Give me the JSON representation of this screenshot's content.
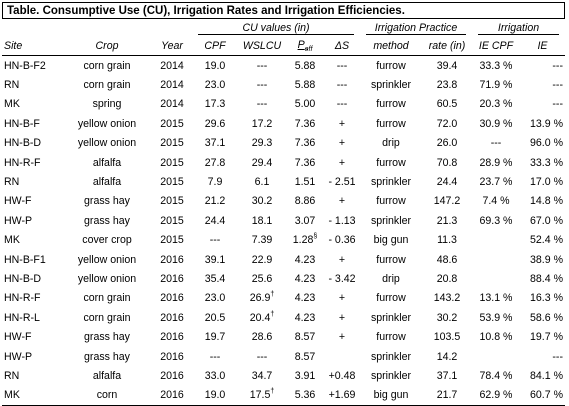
{
  "title": "Table. Consumptive Use (CU), Irrigation Rates and Irrigation Efficiencies.",
  "groups": {
    "cu": "CU values (in)",
    "practice": "Irrigation Practice",
    "irrigation": "Irrigation"
  },
  "columns": {
    "site": "Site",
    "crop": "Crop",
    "year": "Year",
    "cpf": "CPF",
    "wslcu": "WSLCU",
    "peff": "P",
    "peff_sub": "eff",
    "delta_s": "ΔS",
    "method": "method",
    "rate": "rate (in)",
    "ie_cpf": "IE CPF",
    "ie": "IE"
  },
  "rows": [
    {
      "site": "HN-B-F2",
      "crop": "corn grain",
      "year": "2014",
      "cpf": "19.0",
      "wslcu": "---",
      "wslcu_sup": "",
      "peff": "5.88",
      "peff_sup": "",
      "ds": "---",
      "method": "furrow",
      "rate": "39.4",
      "ie_cpf": "33.3 %",
      "ie": "---"
    },
    {
      "site": "RN",
      "crop": "corn grain",
      "year": "2014",
      "cpf": "23.0",
      "wslcu": "---",
      "wslcu_sup": "",
      "peff": "5.88",
      "peff_sup": "",
      "ds": "---",
      "method": "sprinkler",
      "rate": "23.8",
      "ie_cpf": "71.9 %",
      "ie": "---"
    },
    {
      "site": "MK",
      "crop": "spring",
      "year": "2014",
      "cpf": "17.3",
      "wslcu": "---",
      "wslcu_sup": "",
      "peff": "5.00",
      "peff_sup": "",
      "ds": "---",
      "method": "furrow",
      "rate": "60.5",
      "ie_cpf": "20.3 %",
      "ie": "---"
    },
    {
      "site": "HN-B-F",
      "crop": "yellow onion",
      "year": "2015",
      "cpf": "29.6",
      "wslcu": "17.2",
      "wslcu_sup": "",
      "peff": "7.36",
      "peff_sup": "",
      "ds": "+",
      "method": "furrow",
      "rate": "72.0",
      "ie_cpf": "30.9 %",
      "ie": "13.9 %"
    },
    {
      "site": "HN-B-D",
      "crop": "yellow onion",
      "year": "2015",
      "cpf": "37.1",
      "wslcu": "29.3",
      "wslcu_sup": "",
      "peff": "7.36",
      "peff_sup": "",
      "ds": "+",
      "method": "drip",
      "rate": "26.0",
      "ie_cpf": "---",
      "ie": "96.0 %"
    },
    {
      "site": "HN-R-F",
      "crop": "alfalfa",
      "year": "2015",
      "cpf": "27.8",
      "wslcu": "29.4",
      "wslcu_sup": "",
      "peff": "7.36",
      "peff_sup": "",
      "ds": "+",
      "method": "furrow",
      "rate": "70.8",
      "ie_cpf": "28.9 %",
      "ie": "33.3 %"
    },
    {
      "site": "RN",
      "crop": "alfalfa",
      "year": "2015",
      "cpf": "7.9",
      "wslcu": "6.1",
      "wslcu_sup": "",
      "peff": "1.51",
      "peff_sup": "",
      "ds": "- 2.51",
      "method": "sprinkler",
      "rate": "24.4",
      "ie_cpf": "23.7 %",
      "ie": "17.0 %"
    },
    {
      "site": "HW-F",
      "crop": "grass hay",
      "year": "2015",
      "cpf": "21.2",
      "wslcu": "30.2",
      "wslcu_sup": "",
      "peff": "8.86",
      "peff_sup": "",
      "ds": "+",
      "method": "furrow",
      "rate": "147.2",
      "ie_cpf": "7.4 %",
      "ie": "14.8 %"
    },
    {
      "site": "HW-P",
      "crop": "grass hay",
      "year": "2015",
      "cpf": "24.4",
      "wslcu": "18.1",
      "wslcu_sup": "",
      "peff": "3.07",
      "peff_sup": "",
      "ds": "- 1.13",
      "method": "sprinkler",
      "rate": "21.3",
      "ie_cpf": "69.3 %",
      "ie": "67.0 %"
    },
    {
      "site": "MK",
      "crop": "cover crop",
      "year": "2015",
      "cpf": "---",
      "wslcu": "7.39",
      "wslcu_sup": "",
      "peff": "1.28",
      "peff_sup": "§",
      "ds": "- 0.36",
      "method": "big gun",
      "rate": "11.3",
      "ie_cpf": "",
      "ie": "52.4 %"
    },
    {
      "site": "HN-B-F1",
      "crop": "yellow onion",
      "year": "2016",
      "cpf": "39.1",
      "wslcu": "22.9",
      "wslcu_sup": "",
      "peff": "4.23",
      "peff_sup": "",
      "ds": "+",
      "method": "furrow",
      "rate": "48.6",
      "ie_cpf": "",
      "ie": "38.9 %"
    },
    {
      "site": "HN-B-D",
      "crop": "yellow onion",
      "year": "2016",
      "cpf": "35.4",
      "wslcu": "25.6",
      "wslcu_sup": "",
      "peff": "4.23",
      "peff_sup": "",
      "ds": "- 3.42",
      "method": "drip",
      "rate": "20.8",
      "ie_cpf": "",
      "ie": "88.4 %"
    },
    {
      "site": "HN-R-F",
      "crop": "corn grain",
      "year": "2016",
      "cpf": "23.0",
      "wslcu": "26.9",
      "wslcu_sup": "†",
      "peff": "4.23",
      "peff_sup": "",
      "ds": "+",
      "method": "furrow",
      "rate": "143.2",
      "ie_cpf": "13.1 %",
      "ie": "16.3 %"
    },
    {
      "site": "HN-R-L",
      "crop": "corn grain",
      "year": "2016",
      "cpf": "20.5",
      "wslcu": "20.4",
      "wslcu_sup": "†",
      "peff": "4.23",
      "peff_sup": "",
      "ds": "+",
      "method": "sprinkler",
      "rate": "30.2",
      "ie_cpf": "53.9 %",
      "ie": "58.6 %"
    },
    {
      "site": "HW-F",
      "crop": "grass hay",
      "year": "2016",
      "cpf": "19.7",
      "wslcu": "28.6",
      "wslcu_sup": "",
      "peff": "8.57",
      "peff_sup": "",
      "ds": "+",
      "method": "furrow",
      "rate": "103.5",
      "ie_cpf": "10.8 %",
      "ie": "19.7 %"
    },
    {
      "site": "HW-P",
      "crop": "grass hay",
      "year": "2016",
      "cpf": "---",
      "wslcu": "---",
      "wslcu_sup": "",
      "peff": "8.57",
      "peff_sup": "",
      "ds": "",
      "method": "sprinkler",
      "rate": "14.2",
      "ie_cpf": "",
      "ie": "---"
    },
    {
      "site": "RN",
      "crop": "alfalfa",
      "year": "2016",
      "cpf": "33.0",
      "wslcu": "34.7",
      "wslcu_sup": "",
      "peff": "3.91",
      "peff_sup": "",
      "ds": "+0.48",
      "method": "sprinkler",
      "rate": "37.1",
      "ie_cpf": "78.4 %",
      "ie": "84.1 %"
    },
    {
      "site": "MK",
      "crop": "corn",
      "year": "2016",
      "cpf": "19.0",
      "wslcu": "17.5",
      "wslcu_sup": "†",
      "peff": "5.36",
      "peff_sup": "",
      "ds": "+1.69",
      "method": "big gun",
      "rate": "21.7",
      "ie_cpf": "62.9 %",
      "ie": "60.7 %"
    }
  ]
}
